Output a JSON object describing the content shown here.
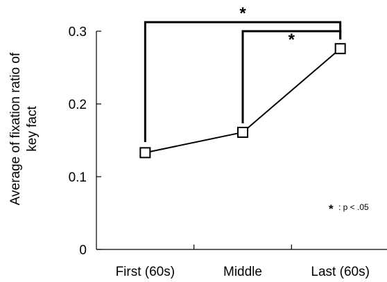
{
  "chart_data": {
    "type": "line",
    "categories": [
      "First (60s)",
      "Middle",
      "Last (60s)"
    ],
    "series": [
      {
        "values": [
          0.133,
          0.161,
          0.276
        ]
      }
    ],
    "ylabel_lines": [
      "Average of fixation ratio of",
      "key fact"
    ],
    "ylim": [
      0,
      0.3
    ],
    "yticks": [
      "0",
      "0.1",
      "0.2",
      "0.3"
    ],
    "grid": false,
    "significance": [
      {
        "from": "First (60s)",
        "to": "Last (60s)",
        "label": "*"
      },
      {
        "from": "Middle",
        "to": "Last (60s)",
        "label": "*"
      }
    ],
    "note": {
      "star": "*",
      "text": ": p < .05"
    }
  }
}
